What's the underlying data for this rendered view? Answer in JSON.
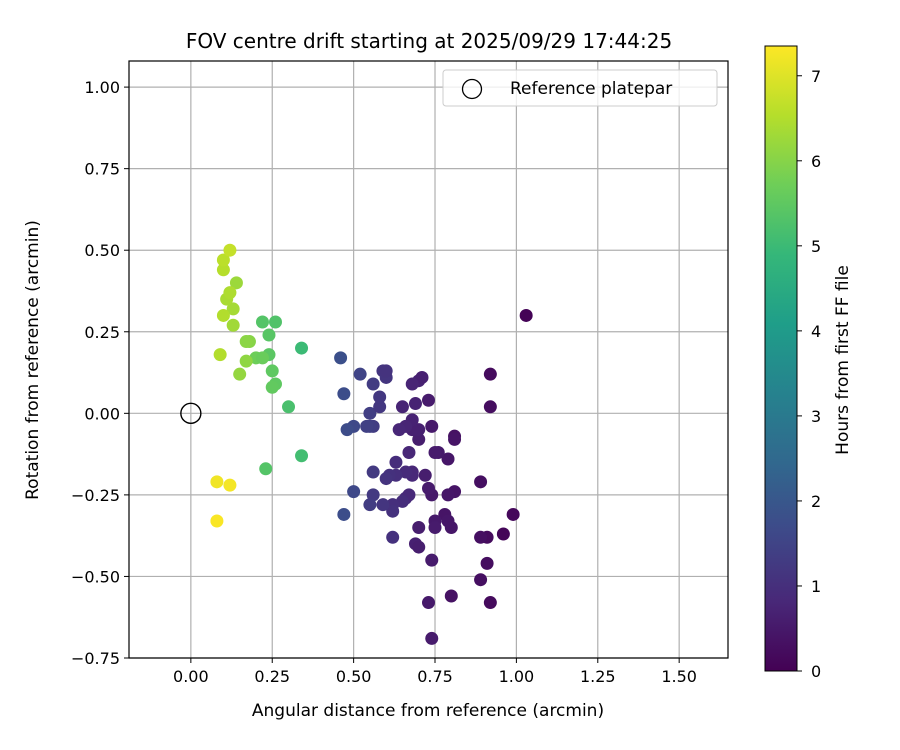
{
  "chart_data": {
    "type": "scatter",
    "title": "FOV centre drift starting at 2025/09/29 17:44:25",
    "xlabel": "Angular distance from reference (arcmin)",
    "ylabel": "Rotation from reference (arcmin)",
    "xlim": [
      -0.19,
      1.65
    ],
    "ylim": [
      -0.75,
      1.08
    ],
    "xticks": [
      0.0,
      0.25,
      0.5,
      0.75,
      1.0,
      1.25,
      1.5
    ],
    "xtick_labels": [
      "0.00",
      "0.25",
      "0.50",
      "0.75",
      "1.00",
      "1.25",
      "1.50"
    ],
    "yticks": [
      -0.75,
      -0.5,
      -0.25,
      0.0,
      0.25,
      0.5,
      0.75,
      1.0
    ],
    "ytick_labels": [
      "−0.75",
      "−0.50",
      "−0.25",
      "0.00",
      "0.25",
      "0.50",
      "0.75",
      "1.00"
    ],
    "grid": true,
    "legend": {
      "position": "top-right",
      "entries": [
        {
          "label": "Reference platepar",
          "marker": "open-circle"
        }
      ]
    },
    "reference_point": {
      "x": 0.0,
      "y": 0.0
    },
    "colorbar": {
      "label": "Hours from first FF file",
      "range": [
        0,
        7.35
      ],
      "ticks": [
        0,
        1,
        2,
        3,
        4,
        5,
        6,
        7
      ],
      "tick_labels": [
        "0",
        "1",
        "2",
        "3",
        "4",
        "5",
        "6",
        "7"
      ],
      "colormap": "viridis",
      "colormap_stops": [
        "#440154",
        "#482878",
        "#3e4989",
        "#31688e",
        "#26828e",
        "#1f9e89",
        "#35b779",
        "#6ece58",
        "#b5de2b",
        "#fde725"
      ]
    },
    "points": [
      {
        "x": 1.03,
        "y": 0.3,
        "t": 0.05
      },
      {
        "x": 0.92,
        "y": 0.12,
        "t": 0.2
      },
      {
        "x": 0.92,
        "y": 0.02,
        "t": 0.25
      },
      {
        "x": 0.99,
        "y": -0.31,
        "t": 0.15
      },
      {
        "x": 0.96,
        "y": -0.37,
        "t": 0.1
      },
      {
        "x": 0.91,
        "y": -0.38,
        "t": 0.2
      },
      {
        "x": 0.89,
        "y": -0.38,
        "t": 0.3
      },
      {
        "x": 0.91,
        "y": -0.46,
        "t": 0.25
      },
      {
        "x": 0.89,
        "y": -0.51,
        "t": 0.3
      },
      {
        "x": 0.92,
        "y": -0.58,
        "t": 0.2
      },
      {
        "x": 0.8,
        "y": -0.56,
        "t": 0.35
      },
      {
        "x": 0.73,
        "y": -0.58,
        "t": 0.5
      },
      {
        "x": 0.74,
        "y": -0.69,
        "t": 0.55
      },
      {
        "x": 0.89,
        "y": -0.21,
        "t": 0.3
      },
      {
        "x": 0.81,
        "y": -0.07,
        "t": 0.35
      },
      {
        "x": 0.81,
        "y": -0.08,
        "t": 0.4
      },
      {
        "x": 0.79,
        "y": -0.14,
        "t": 0.45
      },
      {
        "x": 0.76,
        "y": -0.12,
        "t": 0.5
      },
      {
        "x": 0.75,
        "y": -0.12,
        "t": 0.55
      },
      {
        "x": 0.81,
        "y": -0.24,
        "t": 0.4
      },
      {
        "x": 0.79,
        "y": -0.25,
        "t": 0.45
      },
      {
        "x": 0.74,
        "y": -0.25,
        "t": 0.5
      },
      {
        "x": 0.73,
        "y": -0.23,
        "t": 0.55
      },
      {
        "x": 0.72,
        "y": -0.19,
        "t": 0.6
      },
      {
        "x": 0.78,
        "y": -0.31,
        "t": 0.4
      },
      {
        "x": 0.79,
        "y": -0.33,
        "t": 0.45
      },
      {
        "x": 0.8,
        "y": -0.35,
        "t": 0.45
      },
      {
        "x": 0.75,
        "y": -0.33,
        "t": 0.5
      },
      {
        "x": 0.75,
        "y": -0.35,
        "t": 0.55
      },
      {
        "x": 0.7,
        "y": -0.35,
        "t": 0.6
      },
      {
        "x": 0.69,
        "y": -0.4,
        "t": 0.65
      },
      {
        "x": 0.7,
        "y": -0.41,
        "t": 0.6
      },
      {
        "x": 0.74,
        "y": -0.45,
        "t": 0.55
      },
      {
        "x": 0.74,
        "y": -0.04,
        "t": 0.5
      },
      {
        "x": 0.73,
        "y": 0.04,
        "t": 0.55
      },
      {
        "x": 0.7,
        "y": -0.08,
        "t": 0.6
      },
      {
        "x": 0.7,
        "y": -0.05,
        "t": 0.65
      },
      {
        "x": 0.68,
        "y": -0.05,
        "t": 0.65
      },
      {
        "x": 0.68,
        "y": -0.02,
        "t": 0.7
      },
      {
        "x": 0.66,
        "y": -0.04,
        "t": 0.75
      },
      {
        "x": 0.64,
        "y": -0.05,
        "t": 0.8
      },
      {
        "x": 0.65,
        "y": 0.02,
        "t": 0.75
      },
      {
        "x": 0.69,
        "y": 0.03,
        "t": 0.7
      },
      {
        "x": 0.7,
        "y": 0.1,
        "t": 0.7
      },
      {
        "x": 0.71,
        "y": 0.11,
        "t": 0.65
      },
      {
        "x": 0.68,
        "y": 0.09,
        "t": 0.75
      },
      {
        "x": 0.67,
        "y": -0.12,
        "t": 0.8
      },
      {
        "x": 0.68,
        "y": -0.18,
        "t": 0.8
      },
      {
        "x": 0.68,
        "y": -0.19,
        "t": 0.85
      },
      {
        "x": 0.66,
        "y": -0.18,
        "t": 0.9
      },
      {
        "x": 0.63,
        "y": -0.15,
        "t": 0.95
      },
      {
        "x": 0.63,
        "y": -0.19,
        "t": 1.0
      },
      {
        "x": 0.61,
        "y": -0.19,
        "t": 1.05
      },
      {
        "x": 0.6,
        "y": -0.2,
        "t": 1.1
      },
      {
        "x": 0.66,
        "y": -0.26,
        "t": 0.9
      },
      {
        "x": 0.67,
        "y": -0.25,
        "t": 0.85
      },
      {
        "x": 0.65,
        "y": -0.27,
        "t": 0.95
      },
      {
        "x": 0.62,
        "y": -0.28,
        "t": 1.0
      },
      {
        "x": 0.62,
        "y": -0.3,
        "t": 1.05
      },
      {
        "x": 0.59,
        "y": -0.28,
        "t": 1.15
      },
      {
        "x": 0.56,
        "y": -0.25,
        "t": 1.25
      },
      {
        "x": 0.55,
        "y": -0.28,
        "t": 1.3
      },
      {
        "x": 0.62,
        "y": -0.38,
        "t": 1.05
      },
      {
        "x": 0.56,
        "y": -0.18,
        "t": 1.25
      },
      {
        "x": 0.56,
        "y": -0.04,
        "t": 1.3
      },
      {
        "x": 0.55,
        "y": -0.04,
        "t": 1.35
      },
      {
        "x": 0.54,
        "y": -0.04,
        "t": 1.4
      },
      {
        "x": 0.55,
        "y": 0.0,
        "t": 1.35
      },
      {
        "x": 0.58,
        "y": 0.02,
        "t": 1.2
      },
      {
        "x": 0.58,
        "y": 0.05,
        "t": 1.2
      },
      {
        "x": 0.56,
        "y": 0.09,
        "t": 1.3
      },
      {
        "x": 0.6,
        "y": 0.11,
        "t": 1.15
      },
      {
        "x": 0.59,
        "y": 0.13,
        "t": 1.15
      },
      {
        "x": 0.6,
        "y": 0.13,
        "t": 1.1
      },
      {
        "x": 0.52,
        "y": 0.12,
        "t": 1.5
      },
      {
        "x": 0.5,
        "y": -0.04,
        "t": 1.6
      },
      {
        "x": 0.48,
        "y": -0.05,
        "t": 1.7
      },
      {
        "x": 0.47,
        "y": 0.06,
        "t": 1.75
      },
      {
        "x": 0.46,
        "y": 0.17,
        "t": 1.8
      },
      {
        "x": 0.5,
        "y": -0.24,
        "t": 1.6
      },
      {
        "x": 0.47,
        "y": -0.31,
        "t": 1.75
      },
      {
        "x": 0.34,
        "y": 0.2,
        "t": 5.0
      },
      {
        "x": 0.34,
        "y": -0.13,
        "t": 5.1
      },
      {
        "x": 0.3,
        "y": 0.02,
        "t": 5.2
      },
      {
        "x": 0.26,
        "y": 0.28,
        "t": 5.3
      },
      {
        "x": 0.22,
        "y": 0.28,
        "t": 5.35
      },
      {
        "x": 0.24,
        "y": 0.24,
        "t": 5.4
      },
      {
        "x": 0.24,
        "y": 0.18,
        "t": 5.45
      },
      {
        "x": 0.25,
        "y": 0.13,
        "t": 5.5
      },
      {
        "x": 0.26,
        "y": 0.09,
        "t": 5.5
      },
      {
        "x": 0.25,
        "y": 0.08,
        "t": 5.55
      },
      {
        "x": 0.23,
        "y": -0.17,
        "t": 5.35
      },
      {
        "x": 0.2,
        "y": 0.17,
        "t": 5.7
      },
      {
        "x": 0.22,
        "y": 0.17,
        "t": 5.65
      },
      {
        "x": 0.18,
        "y": 0.22,
        "t": 6.0
      },
      {
        "x": 0.17,
        "y": 0.22,
        "t": 6.05
      },
      {
        "x": 0.17,
        "y": 0.16,
        "t": 6.1
      },
      {
        "x": 0.15,
        "y": 0.12,
        "t": 6.15
      },
      {
        "x": 0.14,
        "y": 0.4,
        "t": 6.25
      },
      {
        "x": 0.13,
        "y": 0.27,
        "t": 6.3
      },
      {
        "x": 0.13,
        "y": 0.32,
        "t": 6.35
      },
      {
        "x": 0.11,
        "y": 0.35,
        "t": 6.4
      },
      {
        "x": 0.12,
        "y": 0.37,
        "t": 6.45
      },
      {
        "x": 0.1,
        "y": 0.3,
        "t": 6.5
      },
      {
        "x": 0.1,
        "y": 0.44,
        "t": 6.55
      },
      {
        "x": 0.1,
        "y": 0.47,
        "t": 6.6
      },
      {
        "x": 0.12,
        "y": 0.5,
        "t": 6.7
      },
      {
        "x": 0.09,
        "y": 0.18,
        "t": 6.5
      },
      {
        "x": 0.08,
        "y": -0.21,
        "t": 7.2
      },
      {
        "x": 0.12,
        "y": -0.22,
        "t": 7.25
      },
      {
        "x": 0.08,
        "y": -0.33,
        "t": 7.3
      }
    ]
  }
}
